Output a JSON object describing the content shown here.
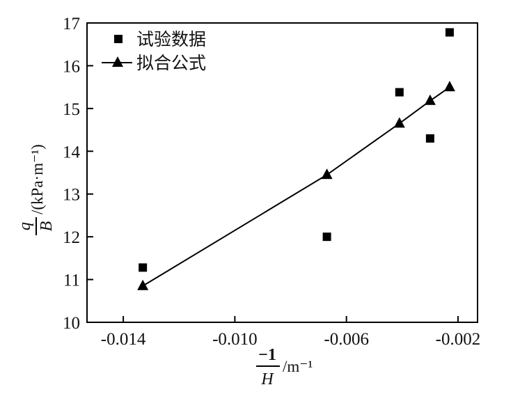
{
  "chart_data": {
    "type": "scatter",
    "title": "",
    "xlabel": {
      "numerator": "−1",
      "denominator": "H",
      "unit": "/m⁻¹"
    },
    "ylabel": {
      "numerator": "q",
      "denominator": "B",
      "unit": "/(kPa·m⁻¹)"
    },
    "xlim": [
      -0.0153,
      -0.0013
    ],
    "ylim": [
      10,
      17
    ],
    "x_ticks": [
      -0.014,
      -0.01,
      -0.006,
      -0.002
    ],
    "x_tick_labels": [
      "-0.014",
      "-0.010",
      "-0.006",
      "-0.002"
    ],
    "y_ticks": [
      10,
      11,
      12,
      13,
      14,
      15,
      16,
      17
    ],
    "y_tick_labels": [
      "10",
      "11",
      "12",
      "13",
      "14",
      "15",
      "16",
      "17"
    ],
    "grid": false,
    "legend_position": "top-left",
    "series": [
      {
        "name": "试验数据",
        "marker": "square",
        "line": false,
        "color": "#000000",
        "x": [
          -0.0133,
          -0.0067,
          -0.0041,
          -0.003,
          -0.0023
        ],
        "y": [
          11.28,
          12.0,
          15.38,
          14.3,
          16.78
        ]
      },
      {
        "name": "拟合公式",
        "marker": "triangle",
        "line": true,
        "color": "#000000",
        "x": [
          -0.0133,
          -0.0067,
          -0.0041,
          -0.003,
          -0.0023
        ],
        "y": [
          10.85,
          13.45,
          14.65,
          15.18,
          15.5
        ]
      }
    ]
  }
}
